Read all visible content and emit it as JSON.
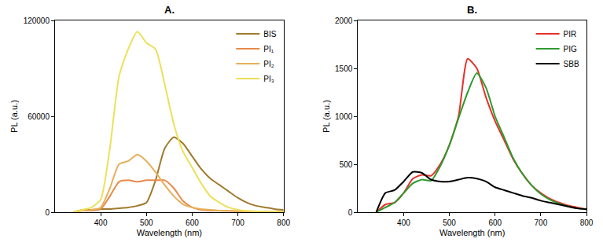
{
  "chart_data": [
    {
      "type": "line",
      "title": "A.",
      "x_label": "Wavelength (nm)",
      "y_label": "PL (a.u.)",
      "x": [
        340,
        360,
        380,
        400,
        420,
        440,
        460,
        480,
        500,
        520,
        540,
        560,
        580,
        600,
        620,
        640,
        660,
        680,
        700,
        720,
        740,
        760,
        780,
        800
      ],
      "series": [
        {
          "name": "BIS",
          "color": "#a07a2c",
          "values": [
            0,
            1500,
            1500,
            2000,
            2000,
            2500,
            3000,
            4000,
            6000,
            20000,
            40000,
            47000,
            43000,
            35000,
            27000,
            21000,
            17000,
            13000,
            9000,
            6000,
            4000,
            3000,
            2000,
            1500
          ]
        },
        {
          "name": "PI₁",
          "color": "#e88a4a",
          "values": [
            0,
            1000,
            1000,
            2000,
            10000,
            19000,
            20000,
            19000,
            20000,
            20000,
            20000,
            15000,
            7000,
            3000,
            1500,
            1000,
            1000,
            800,
            600,
            500,
            400,
            300,
            200,
            200
          ]
        },
        {
          "name": "PI₂",
          "color": "#e6b05a",
          "values": [
            0,
            1000,
            1500,
            3000,
            15000,
            30000,
            32000,
            36000,
            32000,
            25000,
            17000,
            10000,
            5000,
            3000,
            2000,
            1500,
            1000,
            800,
            600,
            500,
            400,
            300,
            200,
            200
          ]
        },
        {
          "name": "PI₃",
          "color": "#ede05a",
          "values": [
            0,
            1500,
            3000,
            8000,
            40000,
            85000,
            102000,
            113000,
            106000,
            102000,
            80000,
            55000,
            38000,
            28000,
            18000,
            10000,
            6000,
            3000,
            1500,
            800,
            500,
            300,
            200,
            200
          ]
        }
      ],
      "xlim": [
        300,
        800
      ],
      "xticks": [
        400,
        500,
        600,
        700,
        800
      ],
      "ylim": [
        0,
        120000
      ],
      "yticks": [
        0,
        60000,
        120000
      ],
      "grid": false,
      "legend": "upper right"
    },
    {
      "type": "line",
      "title": "B.",
      "x_label": "Wavelength (nm)",
      "y_label": "PL (a.u.)",
      "x": [
        340,
        360,
        380,
        400,
        420,
        440,
        460,
        480,
        500,
        520,
        540,
        560,
        580,
        600,
        620,
        640,
        660,
        680,
        700,
        720,
        740,
        760,
        780,
        800
      ],
      "series": [
        {
          "name": "PIR",
          "color": "#e8302a",
          "values": [
            0,
            80,
            100,
            200,
            350,
            390,
            380,
            500,
            700,
            1000,
            1600,
            1500,
            1200,
            950,
            750,
            550,
            400,
            280,
            200,
            140,
            100,
            70,
            50,
            30
          ]
        },
        {
          "name": "PIG",
          "color": "#2e9a2e",
          "values": [
            0,
            50,
            100,
            200,
            300,
            340,
            330,
            480,
            700,
            980,
            1250,
            1450,
            1300,
            1000,
            780,
            560,
            400,
            280,
            190,
            130,
            90,
            60,
            40,
            30
          ]
        },
        {
          "name": "SBB",
          "color": "#000000",
          "values": [
            0,
            200,
            230,
            320,
            420,
            410,
            340,
            320,
            320,
            340,
            360,
            350,
            320,
            260,
            230,
            200,
            170,
            150,
            120,
            100,
            80,
            60,
            40,
            30
          ]
        }
      ],
      "xlim": [
        300,
        800
      ],
      "xticks": [
        400,
        500,
        600,
        700,
        800
      ],
      "ylim": [
        0,
        2000
      ],
      "yticks": [
        0,
        500,
        1000,
        1500,
        2000
      ],
      "grid": false,
      "legend": "upper right"
    }
  ]
}
